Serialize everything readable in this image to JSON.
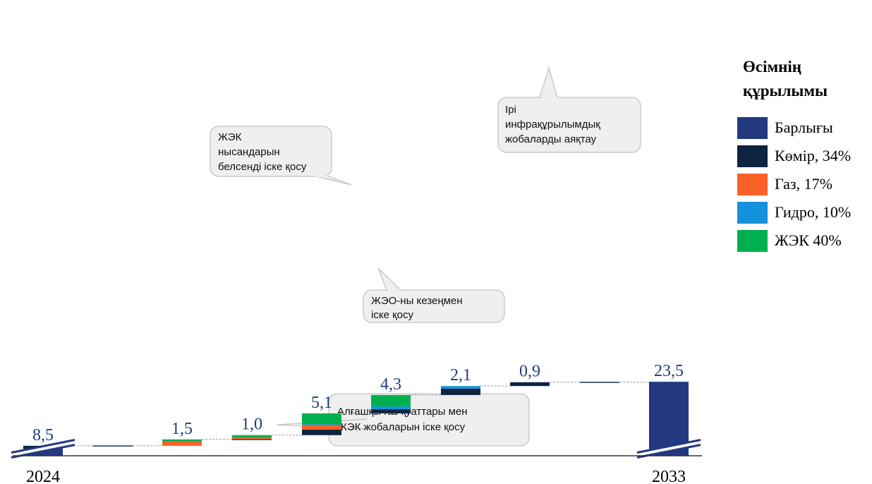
{
  "chart_data": {
    "type": "waterfall",
    "categories": [
      "2024",
      "",
      "",
      "",
      "",
      "",
      "",
      "",
      "",
      "2033"
    ],
    "values": [
      8.5,
      0.0,
      1.5,
      1.0,
      5.1,
      4.3,
      2.1,
      0.9,
      0.0,
      23.5
    ],
    "value_labels": [
      "8,5",
      "",
      "1,5",
      "1,0",
      "5,1",
      "4,3",
      "2,1",
      "0,9",
      "",
      "23,5"
    ],
    "stacks": [
      {
        "category_index": 0,
        "segments": [
          {
            "kind": "total",
            "value": 7.8
          },
          {
            "kind": "coal",
            "value": 0.7
          }
        ]
      },
      {
        "category_index": 2,
        "segments": [
          {
            "kind": "gas",
            "value": 1.0
          },
          {
            "kind": "res",
            "value": 0.5
          }
        ]
      },
      {
        "category_index": 3,
        "segments": [
          {
            "kind": "coal",
            "value": 0.05
          },
          {
            "kind": "gas",
            "value": 0.35
          },
          {
            "kind": "res",
            "value": 0.6
          }
        ]
      },
      {
        "category_index": 4,
        "segments": [
          {
            "kind": "coal",
            "value": 1.3
          },
          {
            "kind": "gas",
            "value": 1.05
          },
          {
            "kind": "hydro",
            "value": 0.2
          },
          {
            "kind": "res",
            "value": 2.55
          }
        ]
      },
      {
        "category_index": 5,
        "segments": [
          {
            "kind": "coal",
            "value": 0.95
          },
          {
            "kind": "hydro",
            "value": 0.65
          },
          {
            "kind": "res",
            "value": 2.7
          }
        ]
      },
      {
        "category_index": 6,
        "segments": [
          {
            "kind": "coal",
            "value": 1.5
          },
          {
            "kind": "hydro",
            "value": 0.6
          }
        ]
      },
      {
        "category_index": 7,
        "segments": [
          {
            "kind": "coal",
            "value": 0.9
          }
        ]
      },
      {
        "category_index": 9,
        "segments": [
          {
            "kind": "total",
            "value": 23.5
          }
        ]
      }
    ],
    "axis_break": true,
    "colors": {
      "total": "#22387f",
      "coal": "#0e2440",
      "gas": "#fa6127",
      "hydro": "#1591dc",
      "res": "#00b050"
    },
    "legend": {
      "title": "Өсімнің құрылымы",
      "items": [
        {
          "kind": "total",
          "label": "Барлығы"
        },
        {
          "kind": "coal",
          "label": "Көмір, 34%"
        },
        {
          "kind": "gas",
          "label": "Газ, 17%"
        },
        {
          "kind": "hydro",
          "label": "Гидро, 10%"
        },
        {
          "kind": "res",
          "label": "ЖЭК 40%"
        }
      ],
      "placement": "right"
    },
    "annotations": [
      {
        "lines": [
          "Алғашқы газ қуаттары мен",
          "ЖЭК жобаларын іске қосу"
        ]
      },
      {
        "lines": [
          "ЖЭО-ны кезеңмен",
          "іске қосу"
        ]
      },
      {
        "lines": [
          "ЖЭК",
          "нысандарын",
          "белсенді іске қосу"
        ]
      },
      {
        "lines": [
          "Ірі",
          "инфрақұрылымдық",
          "жобаларды аяқтау"
        ]
      }
    ]
  }
}
